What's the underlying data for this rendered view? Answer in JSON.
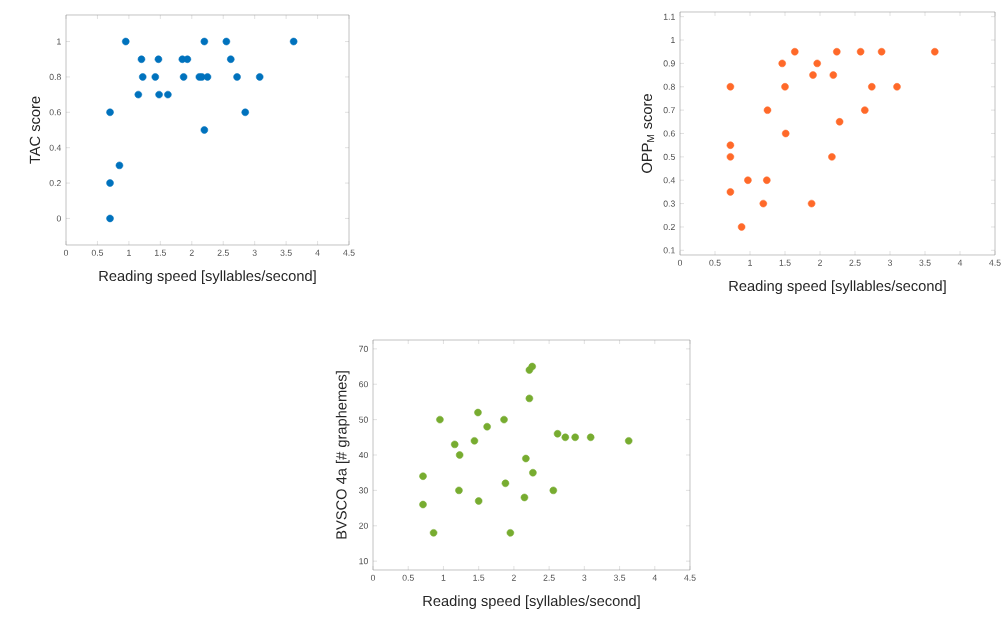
{
  "chart_data": [
    {
      "type": "scatter",
      "xlabel": "Reading speed [syllables/second]",
      "ylabel": "TAC score",
      "color": "#0072bd",
      "marker": "circle",
      "x": [
        0.7,
        0.7,
        0.7,
        0.85,
        0.95,
        1.15,
        1.2,
        1.22,
        1.42,
        1.47,
        1.48,
        1.62,
        1.85,
        1.87,
        1.93,
        2.12,
        2.16,
        2.2,
        2.2,
        2.25,
        2.55,
        2.62,
        2.72,
        2.85,
        3.08,
        3.62
      ],
      "values": [
        0.6,
        0.2,
        0,
        0.3,
        1,
        0.7,
        0.9,
        0.8,
        0.8,
        0.9,
        0.7,
        0.7,
        0.9,
        0.8,
        0.9,
        0.8,
        0.8,
        1,
        0.5,
        0.8,
        1,
        0.9,
        0.8,
        0.6,
        0.8,
        1
      ],
      "xlim": [
        0,
        4.5
      ],
      "ylim": [
        -0.15,
        1.15
      ],
      "xticks": [
        0,
        0.5,
        1,
        1.5,
        2,
        2.5,
        3,
        3.5,
        4,
        4.5
      ],
      "yticks": [
        0,
        0.2,
        0.4,
        0.6,
        0.8,
        1
      ]
    },
    {
      "type": "scatter",
      "xlabel": "Reading speed [syllables/second]",
      "ylabel": "OPP$_{M}$ score",
      "color": "#ff6929",
      "marker": "circle",
      "x": [
        0.72,
        1.46,
        1.64,
        1.96,
        1.9,
        1.5,
        1.25,
        1.51,
        0.72,
        0.72,
        0.97,
        1.24,
        0.72,
        1.19,
        1.88,
        0.88,
        2.24,
        2.19,
        2.17,
        2.28,
        2.58,
        2.88,
        2.74,
        2.64,
        3.1,
        3.64
      ],
      "values": [
        0.8,
        0.9,
        0.95,
        0.9,
        0.85,
        0.8,
        0.7,
        0.6,
        0.55,
        0.5,
        0.4,
        0.4,
        0.35,
        0.3,
        0.3,
        0.2,
        0.95,
        0.85,
        0.5,
        0.65,
        0.95,
        0.95,
        0.8,
        0.7,
        0.8,
        0.95
      ],
      "xlim": [
        0,
        4.5
      ],
      "ylim": [
        0.08,
        1.12
      ],
      "xticks": [
        0,
        0.5,
        1,
        1.5,
        2,
        2.5,
        3,
        3.5,
        4,
        4.5
      ],
      "yticks": [
        0.1,
        0.2,
        0.3,
        0.4,
        0.5,
        0.6,
        0.7,
        0.8,
        0.9,
        1,
        1.1
      ]
    },
    {
      "type": "scatter",
      "xlabel": "Reading speed [syllables/second]",
      "ylabel": "BVSCO 4a [# graphemes]",
      "color": "#77ac30",
      "marker": "circle",
      "x": [
        0.71,
        0.71,
        0.86,
        0.95,
        1.16,
        1.23,
        1.22,
        1.44,
        1.49,
        1.5,
        1.62,
        1.86,
        1.88,
        1.95,
        2.17,
        2.15,
        2.22,
        2.26,
        2.22,
        2.27,
        2.56,
        2.62,
        2.73,
        2.87,
        3.09,
        3.63
      ],
      "values": [
        34,
        26,
        18,
        50,
        43,
        40,
        30,
        44,
        52,
        27,
        48,
        50,
        32,
        18,
        39,
        28,
        64,
        65,
        56,
        35,
        30,
        46,
        45,
        45,
        45,
        44
      ],
      "xlim": [
        0,
        4.5
      ],
      "ylim": [
        7.5,
        72.5
      ],
      "xticks": [
        0,
        0.5,
        1,
        1.5,
        2,
        2.5,
        3,
        3.5,
        4,
        4.5
      ],
      "yticks": [
        10,
        20,
        30,
        40,
        50,
        60,
        70
      ]
    }
  ]
}
